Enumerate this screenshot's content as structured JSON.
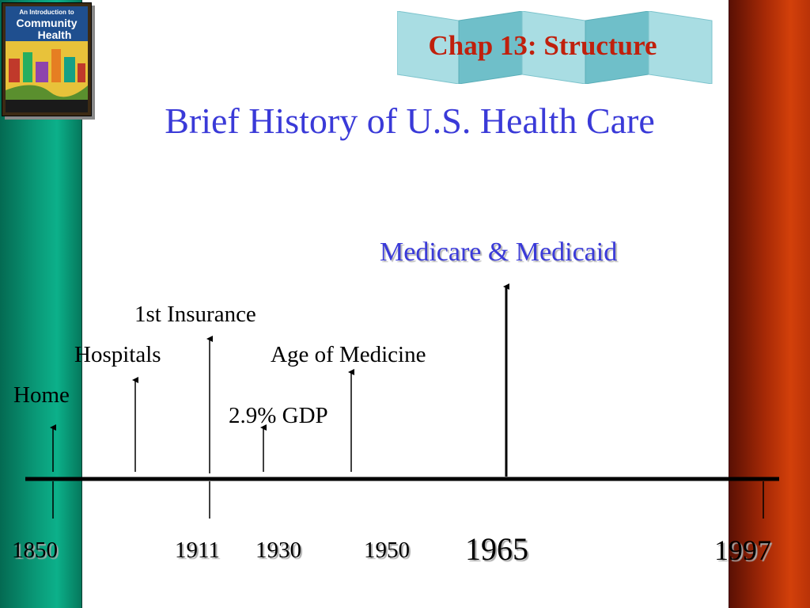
{
  "header": {
    "chapter_label": "Chap 13: Structure"
  },
  "title": "Brief History of U.S. Health Care",
  "book_cover": {
    "title_line1": "An Introduction to",
    "title_line2": "Community",
    "title_line3": "Health"
  },
  "timeline": {
    "years": [
      "1850",
      "1911",
      "1930",
      "1950",
      "1965",
      "1997"
    ],
    "events": [
      {
        "label": "Home"
      },
      {
        "label": "Hospitals"
      },
      {
        "label": "1st Insurance"
      },
      {
        "label": "2.9% GDP"
      },
      {
        "label": "Age of Medicine"
      },
      {
        "label": "Medicare & Medicaid"
      }
    ]
  },
  "colors": {
    "title": "#3a3ad8",
    "header_text": "#c0200c",
    "left_bar": "#0a9a78",
    "right_bar": "#b83208",
    "ribbon": "#8ed0d8"
  }
}
